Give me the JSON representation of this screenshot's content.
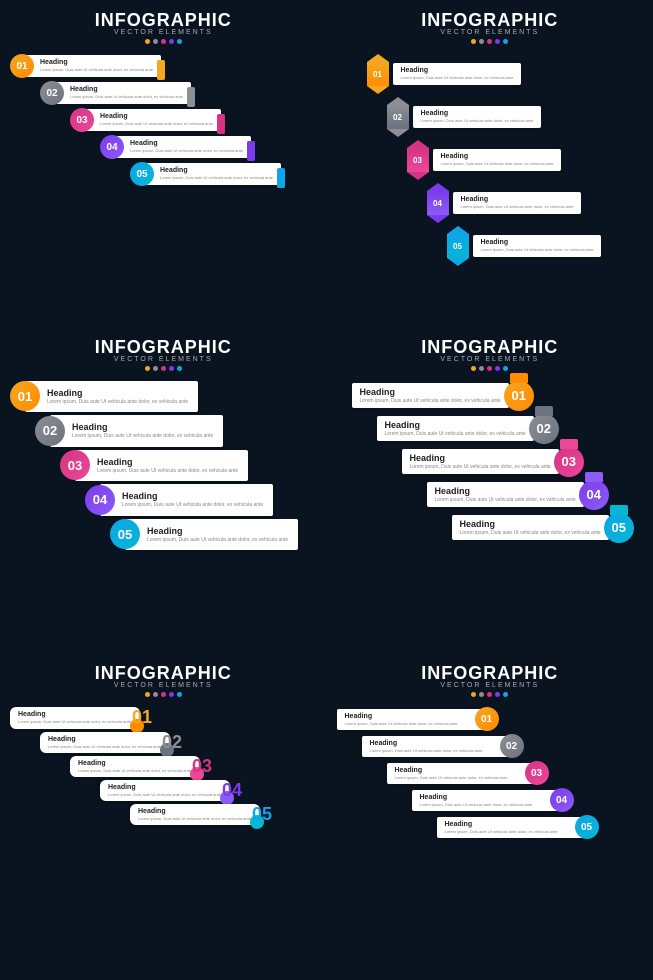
{
  "background_color": "#0a1420",
  "header": {
    "title": "INFOGRAPHIC",
    "subtitle": "VECTOR ELEMENTS",
    "title_color": "#ffffff",
    "subtitle_color": "#aaaaaa",
    "title_fontsize": 18,
    "subtitle_fontsize": 7
  },
  "dot_colors": [
    "#f5a623",
    "#8e8e93",
    "#d63384",
    "#7c3aed",
    "#0ea5e9"
  ],
  "step_colors": [
    {
      "num": "01",
      "color": "#f5a623",
      "gradient": "#ff8c00"
    },
    {
      "num": "02",
      "color": "#8e8e93",
      "gradient": "#6b7280"
    },
    {
      "num": "03",
      "color": "#d63384",
      "gradient": "#ec4899"
    },
    {
      "num": "04",
      "color": "#7c3aed",
      "gradient": "#8b5cf6"
    },
    {
      "num": "05",
      "color": "#0ea5e9",
      "gradient": "#06b6d4"
    }
  ],
  "content": {
    "heading": "Heading",
    "desc": "Lorem ipsum, Duis aute Ut vehicula ante dolor, ex vehicula ante"
  },
  "card_bg": "#ffffff",
  "card_title_color": "#222222",
  "card_desc_color": "#888888",
  "panels": [
    {
      "type": "badge-left-tab",
      "badge_shape": "circle",
      "card_size": "small"
    },
    {
      "type": "arrow-left",
      "badge_shape": "arrow",
      "card_size": "small"
    },
    {
      "type": "badge-left-big",
      "badge_shape": "circle",
      "card_size": "large"
    },
    {
      "type": "badge-right-fold",
      "badge_shape": "circle",
      "card_size": "large"
    },
    {
      "type": "number-right-curl",
      "badge_shape": "number",
      "card_size": "medium"
    },
    {
      "type": "badge-right",
      "badge_shape": "circle",
      "card_size": "medium"
    }
  ]
}
